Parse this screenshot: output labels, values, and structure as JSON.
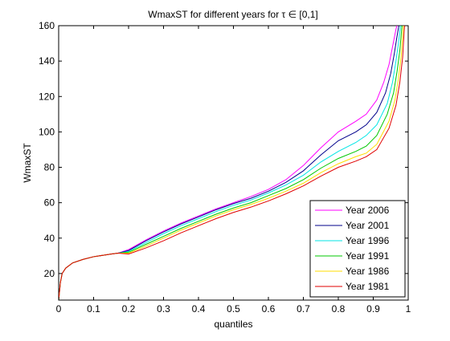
{
  "chart_data": {
    "type": "line",
    "title": "WmaxST for different years for τ ∈ [0,1]",
    "xlabel": "quantiles",
    "ylabel": "WmaxST",
    "xlim": [
      0,
      1
    ],
    "ylim": [
      5,
      160
    ],
    "xticks": [
      "0",
      "0.1",
      "0.2",
      "0.3",
      "0.4",
      "0.5",
      "0.6",
      "0.7",
      "0.8",
      "0.9",
      "1"
    ],
    "yticks": [
      "20",
      "40",
      "60",
      "80",
      "100",
      "120",
      "140",
      "160"
    ],
    "grid": false,
    "legend_position": "bottom-right",
    "series": [
      {
        "name": "Year 2006",
        "color": "#ff00ff",
        "x": [
          0,
          0.005,
          0.01,
          0.02,
          0.04,
          0.07,
          0.1,
          0.15,
          0.17,
          0.2,
          0.25,
          0.3,
          0.35,
          0.4,
          0.45,
          0.5,
          0.55,
          0.6,
          0.65,
          0.7,
          0.75,
          0.8,
          0.85,
          0.88,
          0.91,
          0.93,
          0.945,
          0.955,
          0.965,
          0.97
        ],
        "values": [
          5,
          15,
          20,
          23,
          26,
          28,
          29.5,
          31,
          31.5,
          33.5,
          39,
          44,
          48.5,
          52.5,
          56.5,
          60,
          63.5,
          67.5,
          73,
          81,
          91,
          100,
          106,
          110,
          118,
          128,
          138,
          148,
          158,
          162
        ]
      },
      {
        "name": "Year 2001",
        "color": "#00008b",
        "x": [
          0,
          0.005,
          0.01,
          0.02,
          0.04,
          0.07,
          0.1,
          0.15,
          0.17,
          0.2,
          0.25,
          0.3,
          0.35,
          0.4,
          0.45,
          0.5,
          0.55,
          0.6,
          0.65,
          0.7,
          0.75,
          0.8,
          0.85,
          0.88,
          0.91,
          0.935,
          0.95,
          0.96,
          0.968,
          0.975
        ],
        "values": [
          5,
          15,
          20,
          23,
          26,
          28,
          29.5,
          31,
          31.5,
          33,
          38.5,
          43.5,
          48,
          52,
          56,
          59.5,
          62.5,
          66.5,
          71.5,
          78,
          87,
          95,
          100,
          104,
          111,
          122,
          133,
          144,
          154,
          162
        ]
      },
      {
        "name": "Year 1996",
        "color": "#00e5e5",
        "x": [
          0,
          0.005,
          0.01,
          0.02,
          0.04,
          0.07,
          0.1,
          0.15,
          0.17,
          0.2,
          0.25,
          0.3,
          0.35,
          0.4,
          0.45,
          0.5,
          0.55,
          0.6,
          0.65,
          0.7,
          0.75,
          0.8,
          0.85,
          0.88,
          0.91,
          0.94,
          0.955,
          0.965,
          0.972,
          0.979
        ],
        "values": [
          5,
          15,
          20,
          23,
          26,
          28,
          29.5,
          31,
          31.5,
          32.5,
          37.5,
          42.5,
          47,
          51,
          55,
          58.5,
          61.5,
          65.5,
          70,
          75.5,
          83,
          89,
          94,
          98,
          104,
          116,
          128,
          140,
          150,
          162
        ]
      },
      {
        "name": "Year 1991",
        "color": "#00c800",
        "x": [
          0,
          0.005,
          0.01,
          0.02,
          0.04,
          0.07,
          0.1,
          0.15,
          0.17,
          0.2,
          0.25,
          0.3,
          0.35,
          0.4,
          0.45,
          0.5,
          0.55,
          0.6,
          0.65,
          0.7,
          0.75,
          0.8,
          0.85,
          0.88,
          0.91,
          0.94,
          0.958,
          0.968,
          0.976,
          0.983
        ],
        "values": [
          5,
          15,
          20,
          23,
          26,
          28,
          29.5,
          31,
          31.5,
          32,
          36.5,
          41,
          45.5,
          49.5,
          53.5,
          57,
          60,
          64,
          68,
          73,
          79.5,
          85,
          89,
          92,
          98,
          110,
          122,
          134,
          146,
          162
        ]
      },
      {
        "name": "Year 1986",
        "color": "#ffdd00",
        "x": [
          0,
          0.005,
          0.01,
          0.02,
          0.04,
          0.07,
          0.1,
          0.15,
          0.17,
          0.2,
          0.25,
          0.3,
          0.35,
          0.4,
          0.45,
          0.5,
          0.55,
          0.6,
          0.65,
          0.7,
          0.75,
          0.8,
          0.85,
          0.88,
          0.91,
          0.945,
          0.962,
          0.972,
          0.98,
          0.987
        ],
        "values": [
          5,
          15,
          20,
          23,
          26,
          28,
          29.5,
          31,
          31.5,
          31.5,
          35.5,
          40,
          44.5,
          48.5,
          52.5,
          56,
          59,
          62.5,
          66.5,
          71,
          77,
          82,
          86,
          88,
          93,
          106,
          118,
          130,
          143,
          162
        ]
      },
      {
        "name": "Year 1981",
        "color": "#e00000",
        "x": [
          0,
          0.005,
          0.01,
          0.02,
          0.04,
          0.07,
          0.1,
          0.15,
          0.17,
          0.2,
          0.25,
          0.3,
          0.35,
          0.4,
          0.45,
          0.5,
          0.55,
          0.6,
          0.65,
          0.7,
          0.75,
          0.8,
          0.85,
          0.88,
          0.91,
          0.945,
          0.965,
          0.976,
          0.984,
          0.99
        ],
        "values": [
          5,
          15,
          20,
          23,
          26,
          28,
          29.5,
          31,
          31.5,
          31,
          34.5,
          38.5,
          43,
          47,
          51,
          54.5,
          57.5,
          61,
          65,
          69.5,
          75,
          80,
          83.5,
          86,
          90,
          102,
          115,
          128,
          142,
          162
        ]
      }
    ]
  }
}
